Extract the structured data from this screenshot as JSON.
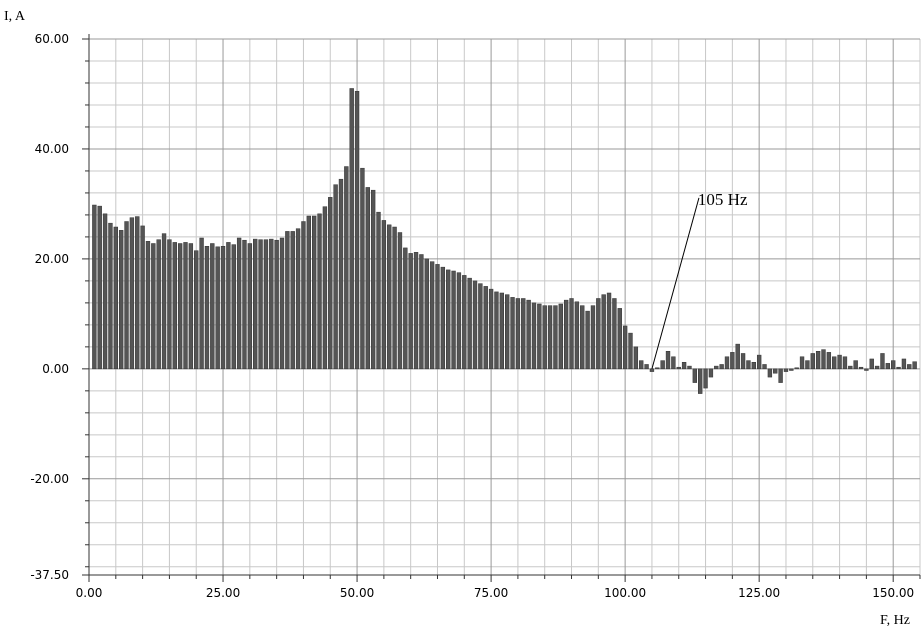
{
  "chart_data": {
    "type": "bar",
    "y_label": "I, A",
    "x_label": "F, Hz",
    "x": [
      1,
      2,
      3,
      4,
      5,
      6,
      7,
      8,
      9,
      10,
      11,
      12,
      13,
      14,
      15,
      16,
      17,
      18,
      19,
      20,
      21,
      22,
      23,
      24,
      25,
      26,
      27,
      28,
      29,
      30,
      31,
      32,
      33,
      34,
      35,
      36,
      37,
      38,
      39,
      40,
      41,
      42,
      43,
      44,
      45,
      46,
      47,
      48,
      49,
      50,
      51,
      52,
      53,
      54,
      55,
      56,
      57,
      58,
      59,
      60,
      61,
      62,
      63,
      64,
      65,
      66,
      67,
      68,
      69,
      70,
      71,
      72,
      73,
      74,
      75,
      76,
      77,
      78,
      79,
      80,
      81,
      82,
      83,
      84,
      85,
      86,
      87,
      88,
      89,
      90,
      91,
      92,
      93,
      94,
      95,
      96,
      97,
      98,
      99,
      100,
      101,
      102,
      103,
      104,
      105,
      106,
      107,
      108,
      109,
      110,
      111,
      112,
      113,
      114,
      115,
      116,
      117,
      118,
      119,
      120,
      121,
      122,
      123,
      124,
      125,
      126,
      127,
      128,
      129,
      130,
      131,
      132,
      133,
      134,
      135,
      136,
      137,
      138,
      139,
      140,
      141,
      142,
      143,
      144,
      145,
      146,
      147,
      148,
      149,
      150,
      151,
      152,
      153,
      154
    ],
    "values": [
      29.8,
      29.6,
      28.2,
      26.5,
      25.8,
      25.2,
      26.8,
      27.5,
      27.7,
      26.0,
      23.2,
      22.8,
      23.5,
      24.6,
      23.5,
      23.0,
      22.8,
      23.0,
      22.8,
      21.5,
      23.8,
      22.3,
      22.8,
      22.2,
      22.3,
      23.0,
      22.6,
      23.8,
      23.4,
      22.8,
      23.6,
      23.5,
      23.5,
      23.6,
      23.4,
      23.8,
      25.0,
      25.0,
      25.5,
      26.8,
      27.8,
      27.8,
      28.2,
      29.5,
      31.2,
      33.5,
      34.5,
      36.8,
      51.0,
      50.5,
      36.5,
      33.0,
      32.5,
      28.5,
      27.0,
      26.2,
      25.8,
      24.8,
      22.0,
      21.0,
      21.2,
      20.8,
      20.0,
      19.5,
      19.0,
      18.5,
      18.0,
      17.8,
      17.5,
      17.0,
      16.5,
      16.0,
      15.5,
      15.0,
      14.5,
      14.0,
      13.8,
      13.5,
      13.0,
      12.8,
      12.8,
      12.5,
      12.0,
      11.8,
      11.5,
      11.5,
      11.5,
      11.8,
      12.5,
      12.8,
      12.2,
      11.5,
      10.5,
      11.5,
      12.8,
      13.5,
      13.8,
      12.8,
      11.0,
      7.8,
      6.5,
      4.0,
      1.5,
      0.8,
      -0.5,
      0.2,
      1.5,
      3.2,
      2.2,
      0.3,
      1.2,
      0.5,
      -2.5,
      -4.5,
      -3.5,
      -1.5,
      0.5,
      0.8,
      2.2,
      3.0,
      4.5,
      2.8,
      1.5,
      1.2,
      2.5,
      0.8,
      -1.5,
      -0.8,
      -2.5,
      -0.5,
      -0.3,
      0.2,
      2.2,
      1.5,
      2.8,
      3.2,
      3.5,
      3.0,
      2.2,
      2.5,
      2.2,
      0.5,
      1.5,
      0.3,
      -0.3,
      1.8,
      0.5,
      2.8,
      1.0,
      1.5,
      0.3,
      1.8,
      0.8,
      1.3
    ],
    "color": "#555555",
    "xlim": [
      0,
      155
    ],
    "ylim": [
      -37.5,
      60
    ],
    "xticks": [
      {
        "value": 0,
        "label": "0.00"
      },
      {
        "value": 25,
        "label": "25.00"
      },
      {
        "value": 50,
        "label": "50.00"
      },
      {
        "value": 75,
        "label": "75.00"
      },
      {
        "value": 100,
        "label": "100.00"
      },
      {
        "value": 125,
        "label": "125.00"
      },
      {
        "value": 150,
        "label": "150.00"
      }
    ],
    "yticks": [
      {
        "value": 60,
        "label": "60.00"
      },
      {
        "value": 40,
        "label": "40.00"
      },
      {
        "value": 20,
        "label": "20.00"
      },
      {
        "value": 0,
        "label": "0.00"
      },
      {
        "value": -20,
        "label": "-20.00"
      },
      {
        "value": -37.5,
        "label": "-37.50"
      }
    ],
    "xminorticks": [
      5,
      10,
      15,
      20,
      30,
      35,
      40,
      45,
      55,
      60,
      65,
      70,
      80,
      85,
      90,
      95,
      105,
      110,
      115,
      120,
      130,
      135,
      140,
      145,
      155
    ],
    "yminorticks": [
      56,
      52,
      48,
      44,
      36,
      32,
      28,
      24,
      16,
      12,
      8,
      4,
      -4,
      -8,
      -12,
      -16,
      -24,
      -28,
      -32,
      -36
    ],
    "grid": true,
    "annotation": {
      "text": "105 Hz",
      "x": 105,
      "y": 0
    }
  }
}
